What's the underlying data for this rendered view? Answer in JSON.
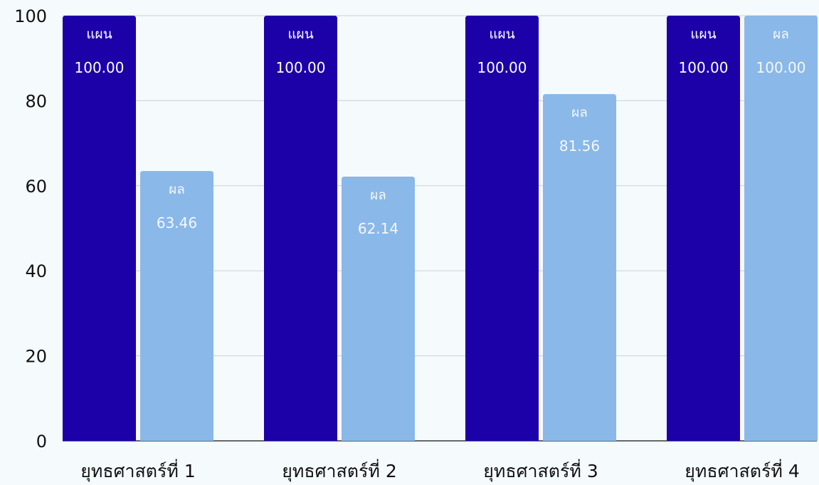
{
  "chart_data": {
    "type": "bar",
    "title": "",
    "xlabel": "",
    "ylabel": "",
    "categories": [
      "ยุทธศาสตร์ที่ 1",
      "ยุทธศาสตร์ที่ 2",
      "ยุทธศาสตร์ที่ 3",
      "ยุทธศาสตร์ที่ 4"
    ],
    "series": [
      {
        "name": "แผน",
        "values": [
          100.0,
          100.0,
          100.0,
          100.0
        ],
        "value_labels": [
          "100.00",
          "100.00",
          "100.00",
          "100.00"
        ],
        "color": "#1c00a8"
      },
      {
        "name": "ผล",
        "values": [
          63.46,
          62.14,
          81.56,
          100.0
        ],
        "value_labels": [
          "63.46",
          "62.14",
          "81.56",
          "100.00"
        ],
        "color": "#8ab8e8"
      }
    ],
    "ylim": [
      0,
      100
    ],
    "yticks": [
      0,
      20,
      40,
      60,
      80,
      100
    ],
    "ytick_labels": [
      "0",
      "20",
      "40",
      "60",
      "80",
      "100"
    ],
    "grid": true,
    "legend": "none",
    "background": "#f5fbfd"
  }
}
